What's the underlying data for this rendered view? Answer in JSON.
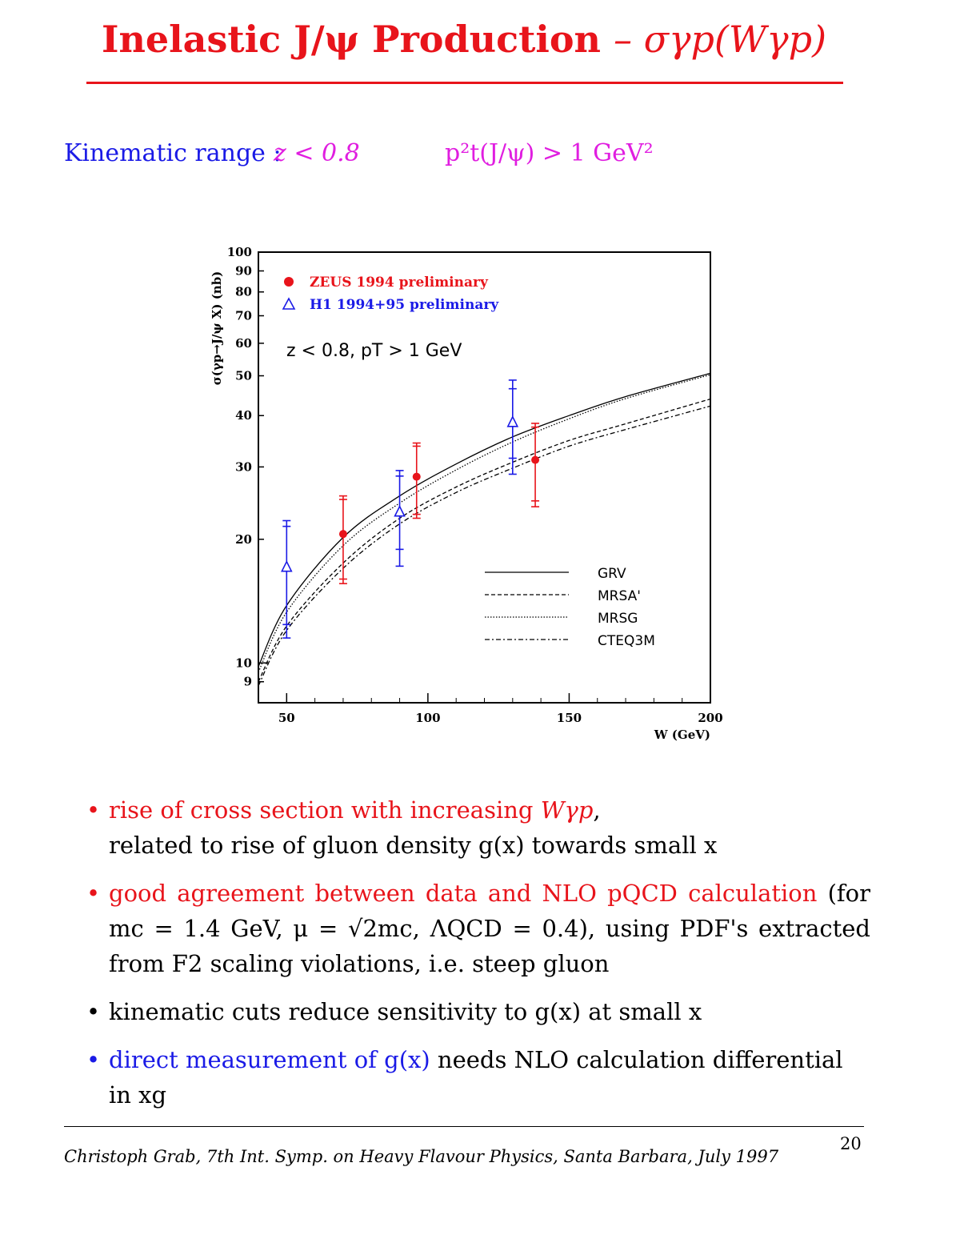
{
  "slide": {
    "title_text": "Inelastic J/ψ Production",
    "title_math": "– σγp(Wγp)",
    "kinematic_label": "Kinematic range :",
    "kinematic_z": "z < 0.8",
    "kinematic_pt": "p²t(J/ψ) > 1 GeV²"
  },
  "chart_data": {
    "type": "scatter",
    "ylabel": "σ(γp→J/ψ X) (nb)",
    "xlabel": "W (GeV)",
    "annotation": "z < 0.8, pT > 1 GeV",
    "x_scale": "linear",
    "y_scale": "log",
    "xlim": [
      40,
      200
    ],
    "ylim": [
      8,
      100
    ],
    "x_ticks": [
      50,
      100,
      150,
      200
    ],
    "y_tick_labels": [
      9,
      10,
      20,
      30,
      40,
      50,
      60,
      70,
      80,
      90,
      100
    ],
    "grid": false,
    "legend_position": "top-left (data) and bottom-right (curves)",
    "series": [
      {
        "name": "ZEUS 1994 preliminary",
        "marker": "filled-circle",
        "color": "#e8141b",
        "points": [
          {
            "x": 70,
            "y": 20.6,
            "y_lo_inner": 16.0,
            "y_hi_inner": 25.0,
            "y_lo": 15.6,
            "y_hi": 25.5
          },
          {
            "x": 96,
            "y": 28.4,
            "y_lo_inner": 23.0,
            "y_hi_inner": 33.7,
            "y_lo": 22.5,
            "y_hi": 34.3
          },
          {
            "x": 138,
            "y": 31.2,
            "y_lo_inner": 24.8,
            "y_hi_inner": 37.5,
            "y_lo": 24.0,
            "y_hi": 38.3
          }
        ]
      },
      {
        "name": "H1 1994+95 preliminary",
        "marker": "open-triangle",
        "color": "#1a1ae6",
        "points": [
          {
            "x": 50,
            "y": 17.1,
            "y_lo_inner": 12.4,
            "y_hi_inner": 21.5,
            "y_lo": 11.5,
            "y_hi": 22.2
          },
          {
            "x": 90,
            "y": 23.3,
            "y_lo_inner": 18.9,
            "y_hi_inner": 28.5,
            "y_lo": 17.2,
            "y_hi": 29.4
          },
          {
            "x": 130,
            "y": 38.5,
            "y_lo_inner": 31.5,
            "y_hi_inner": 46.5,
            "y_lo": 28.8,
            "y_hi": 48.8
          }
        ]
      }
    ],
    "curves": [
      {
        "name": "GRV",
        "dash": "solid",
        "x": [
          40,
          50,
          70,
          90,
          110,
          130,
          150,
          170,
          200
        ],
        "y": [
          9.8,
          13.8,
          20.2,
          25.5,
          30.5,
          35.5,
          40.0,
          44.5,
          50.7
        ]
      },
      {
        "name": "MRSA'",
        "dash": "dashed",
        "x": [
          40,
          50,
          70,
          90,
          110,
          130,
          150,
          170,
          200
        ],
        "y": [
          9.0,
          12.3,
          17.5,
          22.5,
          26.8,
          30.8,
          34.8,
          38.2,
          43.9
        ]
      },
      {
        "name": "MRSG",
        "dash": "dotted",
        "x": [
          40,
          50,
          70,
          90,
          110,
          130,
          150,
          170,
          200
        ],
        "y": [
          9.5,
          13.3,
          19.3,
          24.5,
          29.5,
          34.5,
          39.3,
          44.0,
          50.3
        ]
      },
      {
        "name": "CTEQ3M",
        "dash": "dash-dot",
        "x": [
          40,
          50,
          70,
          90,
          110,
          130,
          150,
          170,
          200
        ],
        "y": [
          8.8,
          12.0,
          17.0,
          21.8,
          26.0,
          29.8,
          33.7,
          37.0,
          42.2
        ]
      }
    ]
  },
  "bullets": {
    "b1_red": "rise of cross section with increasing ",
    "b1_math": "Wγp",
    "b1_tail": ",",
    "b1_line2": "related to rise of gluon density g(x) towards small x",
    "b2_red": "good agreement between data and NLO pQCD calculation",
    "b2_rest": " (for mc = 1.4 GeV, μ = √2mc, ΛQCD = 0.4), using PDF's extracted from F2 scaling violations, i.e. steep gluon",
    "b3": "kinematic cuts reduce sensitivity to g(x) at small x",
    "b4_blue": "direct measurement of g(x)",
    "b4_rest": " needs NLO calculation differential in xg"
  },
  "footer": {
    "text": "Christoph Grab,    7th Int. Symp. on Heavy Flavour Physics, Santa Barbara, July 1997",
    "page": "20"
  }
}
